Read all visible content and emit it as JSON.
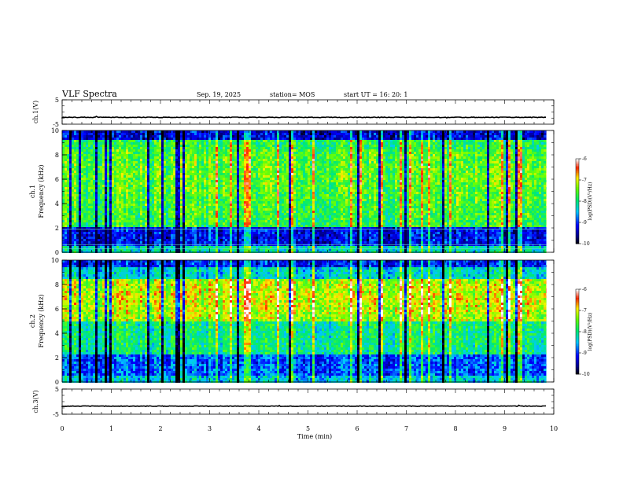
{
  "header": {
    "title": "VLF Spectra",
    "date": "Sep. 19, 2025",
    "station": "station= MOS",
    "start": "start  UT  =   16: 20: 1"
  },
  "chart_data": [
    {
      "type": "line",
      "name": "ch1-waveform",
      "ylabel": "ch.1(V)",
      "ylim": [
        -5,
        5
      ],
      "yticks": [
        5,
        -5
      ],
      "baseline_value": -2.2
    },
    {
      "type": "heatmap",
      "name": "ch1-spectrogram",
      "ylabel_top": "ch.1",
      "ylabel": "Frequency (kHz)",
      "ylim": [
        0,
        10
      ],
      "yticks": [
        0,
        2,
        4,
        6,
        8,
        10
      ],
      "colorbar": {
        "label": "log(PSD)(V²/Hz)",
        "range": [
          -10,
          -6
        ],
        "ticks": [
          -6,
          -7,
          -8,
          -9,
          -10
        ],
        "colors": [
          "#ffffff",
          "#ff0000",
          "#ffff00",
          "#00ff00",
          "#00ffff",
          "#0000ff",
          "#000000"
        ]
      }
    },
    {
      "type": "heatmap",
      "name": "ch2-spectrogram",
      "ylabel_top": "ch.2",
      "ylabel": "Frequency (kHz)",
      "ylim": [
        0,
        10
      ],
      "yticks": [
        0,
        2,
        4,
        6,
        8,
        10
      ],
      "colorbar": {
        "label": "log(PSD)(V²/Hz)",
        "range": [
          -10,
          -6
        ],
        "ticks": [
          -6,
          -7,
          -8,
          -9,
          -10
        ],
        "colors": [
          "#ffffff",
          "#ff0000",
          "#ffff00",
          "#00ff00",
          "#00ffff",
          "#0000ff",
          "#000000"
        ]
      }
    },
    {
      "type": "line",
      "name": "ch3-waveform",
      "ylabel": "ch.3(V)",
      "ylim": [
        -5,
        5
      ],
      "yticks": [
        5,
        -5
      ],
      "baseline_value": -1.8
    }
  ],
  "xaxis": {
    "label": "Time (min)",
    "range": [
      0,
      10
    ],
    "ticks": [
      0,
      1,
      2,
      3,
      4,
      5,
      6,
      7,
      8,
      9,
      10
    ],
    "data_end": 9.85
  }
}
